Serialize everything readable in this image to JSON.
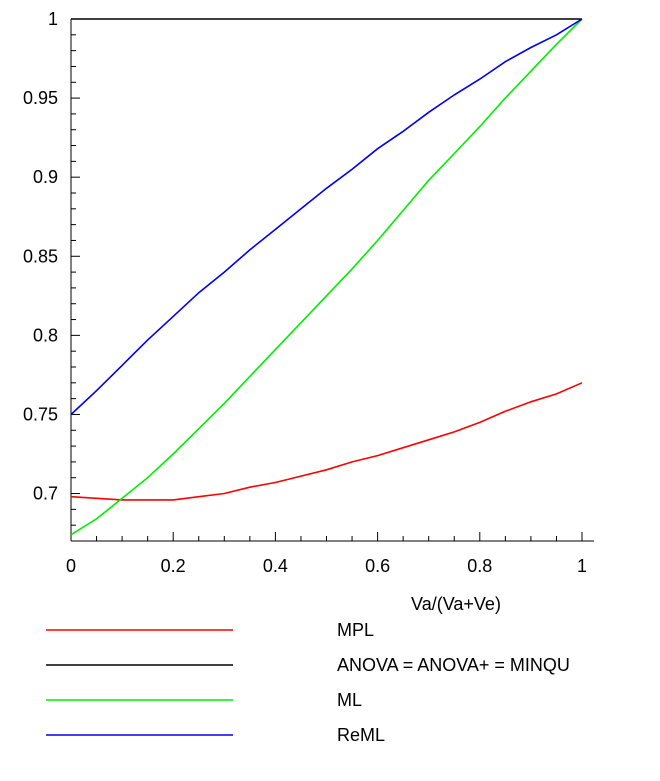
{
  "chart_data": {
    "type": "line",
    "title": "",
    "xlabel": "Va/(Va+Ve)",
    "ylabel": "",
    "xlim": [
      0,
      1
    ],
    "ylim": [
      0.67,
      1
    ],
    "xticks": [
      0,
      0.2,
      0.4,
      0.6,
      0.8,
      1
    ],
    "xtick_labels": [
      "0",
      "0.2",
      "0.4",
      "0.6",
      "0.8",
      "1"
    ],
    "yticks": [
      0.7,
      0.75,
      0.8,
      0.85,
      0.9,
      0.95,
      1
    ],
    "ytick_labels": [
      "0.7",
      "0.75",
      "0.8",
      "0.85",
      "0.9",
      "0.95",
      "1"
    ],
    "grid": false,
    "legend_position": "below",
    "series": [
      {
        "name": "MPL",
        "color": "#ff0000",
        "x": [
          0,
          0.05,
          0.1,
          0.15,
          0.2,
          0.25,
          0.3,
          0.35,
          0.4,
          0.45,
          0.5,
          0.55,
          0.6,
          0.65,
          0.7,
          0.75,
          0.8,
          0.85,
          0.9,
          0.95,
          1
        ],
        "y": [
          0.698,
          0.697,
          0.696,
          0.696,
          0.696,
          0.698,
          0.7,
          0.704,
          0.707,
          0.711,
          0.715,
          0.72,
          0.724,
          0.729,
          0.734,
          0.739,
          0.745,
          0.752,
          0.758,
          0.763,
          0.77
        ]
      },
      {
        "name": "ANOVA = ANOVA+ = MINQU",
        "color": "#000000",
        "x": [
          0,
          1
        ],
        "y": [
          1,
          1
        ]
      },
      {
        "name": "ML",
        "color": "#00ee00",
        "x": [
          0,
          0.05,
          0.1,
          0.15,
          0.2,
          0.25,
          0.3,
          0.35,
          0.4,
          0.45,
          0.5,
          0.55,
          0.6,
          0.65,
          0.7,
          0.75,
          0.8,
          0.85,
          0.9,
          0.95,
          1
        ],
        "y": [
          0.674,
          0.684,
          0.697,
          0.71,
          0.725,
          0.741,
          0.757,
          0.774,
          0.791,
          0.808,
          0.825,
          0.842,
          0.86,
          0.879,
          0.898,
          0.915,
          0.932,
          0.95,
          0.967,
          0.984,
          1.0
        ]
      },
      {
        "name": "ReML",
        "color": "#0000ee",
        "x": [
          0,
          0.05,
          0.1,
          0.15,
          0.2,
          0.25,
          0.3,
          0.35,
          0.4,
          0.45,
          0.5,
          0.55,
          0.6,
          0.65,
          0.7,
          0.75,
          0.8,
          0.85,
          0.9,
          0.95,
          1
        ],
        "y": [
          0.75,
          0.765,
          0.781,
          0.797,
          0.812,
          0.827,
          0.84,
          0.854,
          0.867,
          0.88,
          0.893,
          0.905,
          0.918,
          0.929,
          0.941,
          0.952,
          0.962,
          0.973,
          0.982,
          0.99,
          1.0
        ]
      }
    ]
  }
}
